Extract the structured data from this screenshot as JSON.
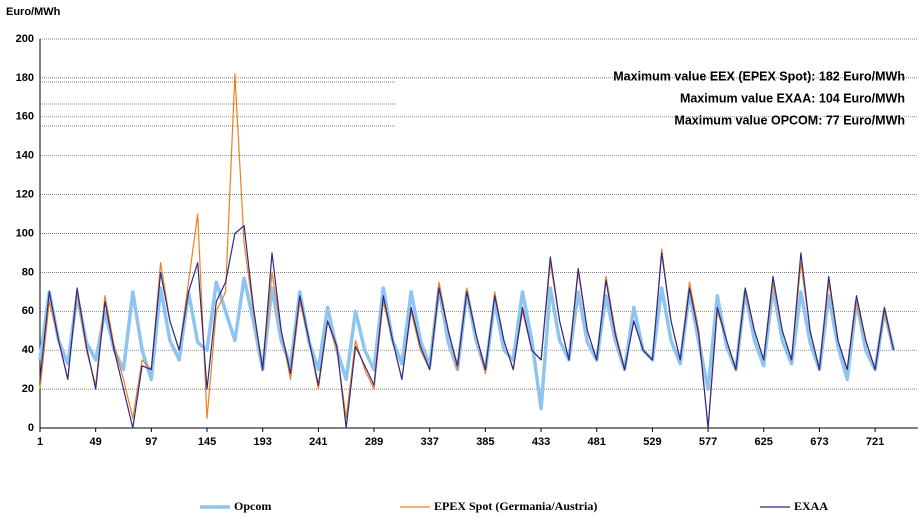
{
  "chart_data": {
    "type": "line",
    "y_label": "Euro/MWh",
    "x": [
      1,
      9,
      17,
      25,
      33,
      41,
      49,
      57,
      65,
      73,
      81,
      89,
      97,
      105,
      113,
      121,
      129,
      137,
      145,
      153,
      161,
      169,
      177,
      185,
      193,
      201,
      209,
      217,
      225,
      233,
      241,
      249,
      257,
      265,
      273,
      281,
      289,
      297,
      305,
      313,
      321,
      329,
      337,
      345,
      353,
      361,
      369,
      377,
      385,
      393,
      401,
      409,
      417,
      425,
      433,
      441,
      449,
      457,
      465,
      473,
      481,
      489,
      497,
      505,
      513,
      521,
      529,
      537,
      545,
      553,
      561,
      569,
      577,
      585,
      593,
      601,
      609,
      617,
      625,
      633,
      641,
      649,
      657,
      665,
      673,
      681,
      689,
      697,
      705,
      713,
      721,
      729,
      737
    ],
    "series": [
      {
        "name": "Opcom",
        "color": "#8ec4f0",
        "values": [
          35,
          70,
          45,
          33,
          68,
          44,
          35,
          60,
          40,
          30,
          70,
          40,
          25,
          72,
          45,
          35,
          70,
          44,
          40,
          75,
          60,
          45,
          77,
          55,
          30,
          72,
          45,
          32,
          70,
          44,
          30,
          62,
          40,
          25,
          60,
          40,
          30,
          72,
          45,
          33,
          70,
          45,
          32,
          72,
          44,
          30,
          70,
          45,
          30,
          65,
          40,
          35,
          70,
          45,
          10,
          72,
          45,
          35,
          70,
          44,
          35,
          68,
          45,
          30,
          62,
          40,
          35,
          72,
          45,
          33,
          70,
          44,
          20,
          68,
          42,
          30,
          70,
          45,
          32,
          72,
          45,
          33,
          70,
          44,
          30,
          68,
          42,
          25,
          65,
          40,
          30,
          60,
          40
        ]
      },
      {
        "name": "EPEX Spot (Germania/Austria)",
        "color": "#f07f1e",
        "values": [
          20,
          65,
          45,
          25,
          70,
          40,
          22,
          68,
          42,
          25,
          5,
          35,
          30,
          85,
          55,
          40,
          75,
          110,
          5,
          60,
          70,
          182,
          95,
          60,
          30,
          80,
          50,
          25,
          65,
          45,
          20,
          55,
          40,
          5,
          45,
          30,
          20,
          65,
          45,
          25,
          60,
          40,
          30,
          75,
          50,
          30,
          72,
          48,
          28,
          70,
          45,
          30,
          60,
          40,
          35,
          85,
          55,
          35,
          80,
          50,
          35,
          78,
          50,
          30,
          55,
          40,
          35,
          92,
          55,
          35,
          75,
          50,
          0,
          60,
          45,
          30,
          70,
          50,
          35,
          75,
          50,
          35,
          85,
          50,
          30,
          75,
          45,
          30,
          65,
          45,
          30,
          60,
          40
        ]
      },
      {
        "name": "EXAA",
        "color": "#2b2b8c",
        "values": [
          25,
          70,
          45,
          25,
          72,
          42,
          20,
          65,
          40,
          20,
          0,
          32,
          30,
          80,
          55,
          40,
          70,
          85,
          20,
          65,
          75,
          100,
          104,
          62,
          30,
          90,
          50,
          28,
          68,
          45,
          22,
          55,
          42,
          0,
          42,
          32,
          22,
          68,
          45,
          25,
          62,
          42,
          30,
          72,
          50,
          32,
          70,
          48,
          30,
          68,
          45,
          30,
          62,
          40,
          35,
          88,
          55,
          35,
          82,
          50,
          35,
          76,
          48,
          30,
          55,
          40,
          35,
          90,
          55,
          35,
          72,
          48,
          0,
          62,
          45,
          30,
          72,
          50,
          35,
          78,
          50,
          35,
          90,
          50,
          30,
          78,
          45,
          30,
          68,
          45,
          30,
          62,
          40
        ]
      }
    ],
    "xlim": [
      1,
      758
    ],
    "ylim": [
      0,
      200
    ],
    "xticks": [
      1,
      49,
      97,
      145,
      193,
      241,
      289,
      337,
      385,
      433,
      481,
      529,
      577,
      625,
      673,
      721
    ],
    "yticks": [
      0,
      20,
      40,
      60,
      80,
      100,
      120,
      140,
      160,
      180,
      200
    ],
    "grid": true,
    "annotations": [
      {
        "text": "Maximum value EEX (EPEX Spot): 182 Euro/MWh",
        "color": "#f07f1e"
      },
      {
        "text": "Maximum value EXAA: 104 Euro/MWh",
        "color": "#2b2b8c"
      },
      {
        "text": "Maximum value OPCOM: 77 Euro/MWh",
        "color": "#a9d1f5"
      }
    ]
  }
}
